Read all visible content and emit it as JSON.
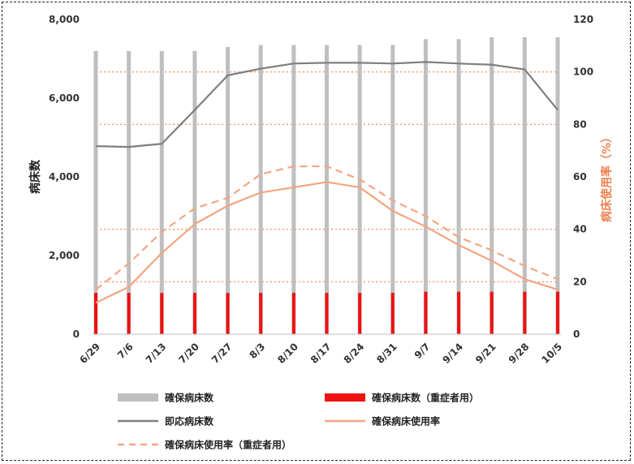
{
  "chart_data": {
    "type": "bar",
    "categories": [
      "6/29",
      "7/6",
      "7/13",
      "7/20",
      "7/27",
      "8/3",
      "8/10",
      "8/17",
      "8/24",
      "8/31",
      "9/7",
      "9/14",
      "9/21",
      "9/28",
      "10/5"
    ],
    "ylabel_left": "病床数",
    "ylabel_right": "病床使用率（%）",
    "ylim_left": [
      0,
      8000
    ],
    "ylim_right": [
      0,
      120
    ],
    "yticks_left": [
      "0",
      "2,000",
      "4,000",
      "6,000",
      "8,000"
    ],
    "yticks_right": [
      "0",
      "20",
      "40",
      "60",
      "80",
      "100",
      "120"
    ],
    "right_grid_dotted": [
      20,
      40,
      80,
      100
    ],
    "series": [
      {
        "name": "確保病床数",
        "kind": "bar",
        "axis": "left",
        "color": "#bfbfbf",
        "values": [
          7200,
          7200,
          7200,
          7200,
          7300,
          7350,
          7350,
          7350,
          7350,
          7350,
          7500,
          7500,
          7550,
          7550,
          7550
        ]
      },
      {
        "name": "確保病床数（重症者用）",
        "kind": "bar",
        "axis": "left",
        "color": "#ee1111",
        "values": [
          1050,
          1050,
          1050,
          1050,
          1050,
          1050,
          1050,
          1050,
          1050,
          1050,
          1080,
          1080,
          1080,
          1080,
          1080
        ]
      },
      {
        "name": "即応病床数",
        "kind": "line",
        "axis": "left",
        "color": "#7f7f7f",
        "dash": false,
        "values": [
          4780,
          4760,
          4840,
          5700,
          6580,
          6750,
          6880,
          6900,
          6900,
          6880,
          6920,
          6880,
          6850,
          6730,
          5700
        ]
      },
      {
        "name": "確保病床使用率",
        "kind": "line",
        "axis": "right",
        "color": "#f4a582",
        "dash": false,
        "values": [
          12,
          18,
          31,
          42,
          49,
          54,
          56,
          58,
          56,
          47,
          41,
          34,
          28,
          21,
          17
        ]
      },
      {
        "name": "確保病床使用率（重症者用）",
        "kind": "line",
        "axis": "right",
        "color": "#f4a582",
        "dash": true,
        "values": [
          17,
          27,
          39,
          48,
          52,
          61,
          64,
          64,
          59,
          51,
          45,
          37,
          32,
          26,
          21
        ]
      }
    ],
    "colors": {
      "ylabel_right": "#f08050",
      "grid": "#f08050",
      "axis": "#999999"
    }
  }
}
